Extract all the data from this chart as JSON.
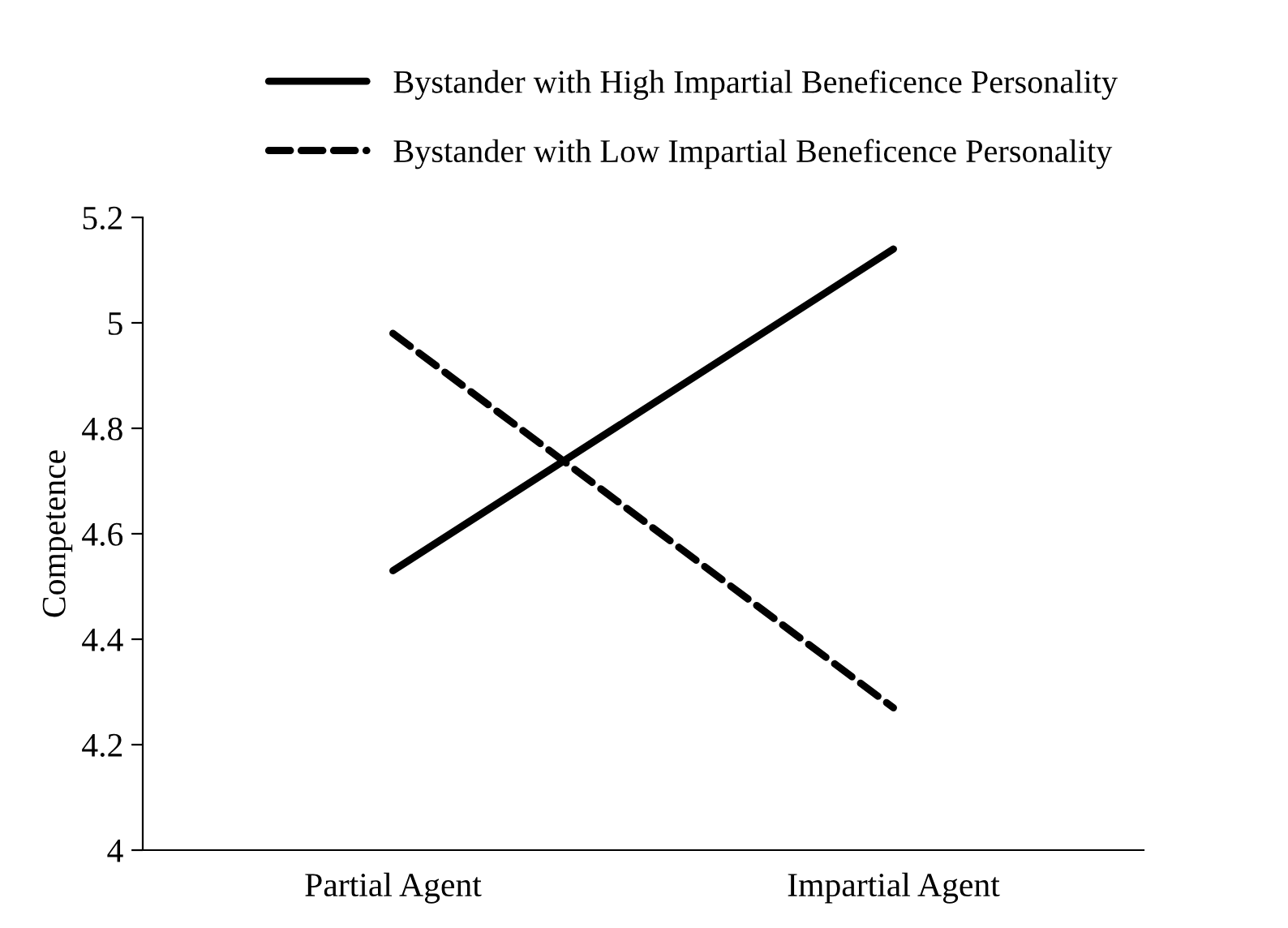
{
  "chart_data": {
    "type": "line",
    "ylabel": "Competence",
    "categories": [
      "Partial Agent",
      "Impartial Agent"
    ],
    "series": [
      {
        "name": "Bystander with High Impartial Beneficence Personality",
        "color": "#000000",
        "values": [
          4.53,
          5.14
        ],
        "line_style": "solid"
      },
      {
        "name": "Bystander with Low Impartial Beneficence Personality",
        "color": "#000000",
        "values": [
          4.98,
          4.27
        ],
        "line_style": "dashed"
      }
    ],
    "ylim": [
      4,
      5.2
    ],
    "yticks": [
      4,
      4.2,
      4.4,
      4.6,
      4.8,
      5,
      5.2
    ],
    "grid": false,
    "legend": "top",
    "marker": "none"
  }
}
